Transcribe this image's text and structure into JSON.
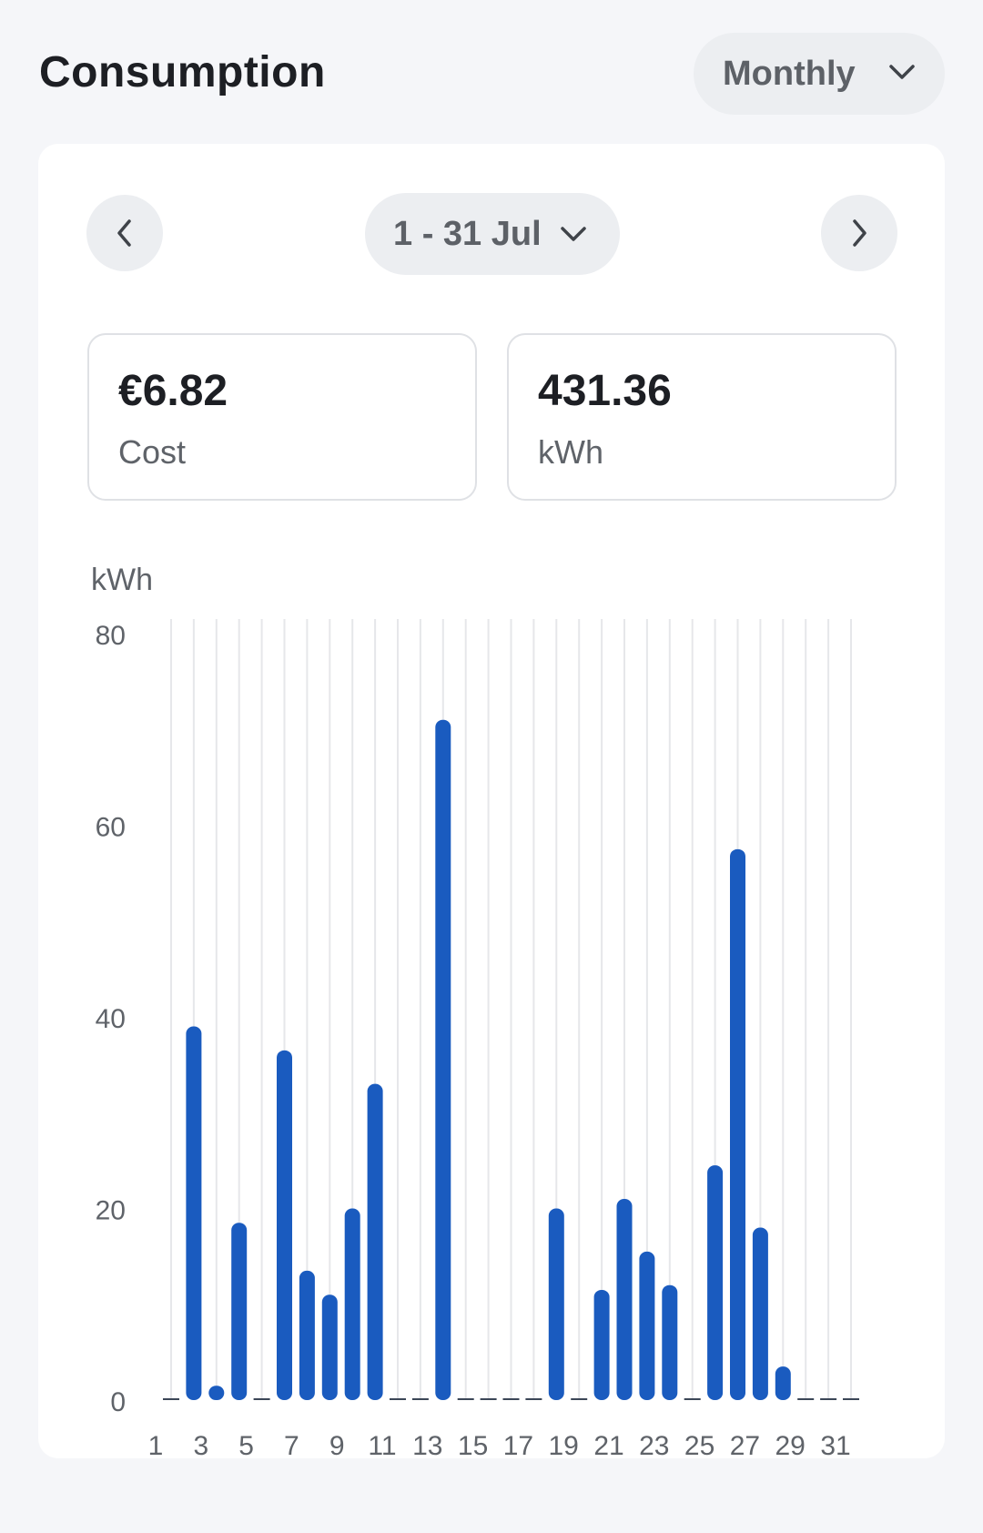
{
  "header": {
    "title": "Consumption",
    "period_label": "Monthly",
    "period_icon": "chevron-down-icon"
  },
  "navigator": {
    "prev_icon": "chevron-left-icon",
    "next_icon": "chevron-right-icon",
    "range_label": "1 - 31 Jul",
    "range_icon": "chevron-down-icon"
  },
  "stats": {
    "cost": {
      "value": "€6.82",
      "label": "Cost"
    },
    "energy": {
      "value": "431.36",
      "label": "kWh"
    }
  },
  "colors": {
    "bar": "#1a5bbf",
    "grid": "#e6e7ea",
    "label": "#5f6369"
  },
  "chart_data": {
    "type": "bar",
    "ylabel": "kWh",
    "ylim": [
      0,
      80
    ],
    "yticks": [
      0,
      20,
      40,
      60,
      80
    ],
    "x": [
      1,
      2,
      3,
      4,
      5,
      6,
      7,
      8,
      9,
      10,
      11,
      12,
      13,
      14,
      15,
      16,
      17,
      18,
      19,
      20,
      21,
      22,
      23,
      24,
      25,
      26,
      27,
      28,
      29,
      30,
      31
    ],
    "xtick_labels": [
      "1",
      "3",
      "5",
      "7",
      "9",
      "11",
      "13",
      "15",
      "17",
      "19",
      "21",
      "23",
      "25",
      "27",
      "29",
      "31"
    ],
    "values": [
      0,
      39,
      1.5,
      18.5,
      0,
      36.5,
      13.5,
      11,
      20,
      33,
      0,
      0,
      71,
      0,
      0,
      0,
      0,
      20,
      0,
      11.5,
      21,
      15.5,
      12,
      0,
      24.5,
      57.5,
      18,
      3.5,
      0,
      0,
      0
    ],
    "grid": true
  }
}
